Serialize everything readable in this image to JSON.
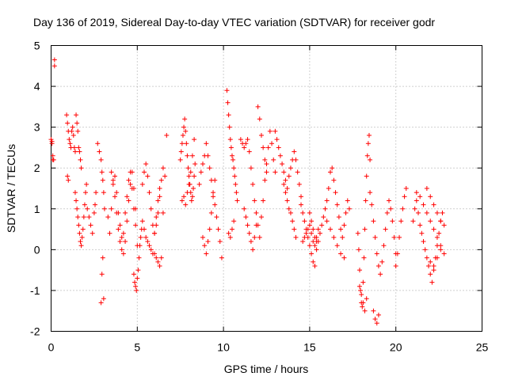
{
  "chart_data": {
    "type": "scatter",
    "title": "Day 136 of 2019, Sidereal Day-to-day VTEC variation (SDTVAR) for receiver godr",
    "xlabel": "GPS time / hours",
    "ylabel": "SDTVAR / TECUs",
    "xlim": [
      0,
      25
    ],
    "ylim": [
      -2,
      5
    ],
    "xticks": [
      0,
      5,
      10,
      15,
      20,
      25
    ],
    "yticks": [
      -2,
      -1,
      0,
      1,
      2,
      3,
      4,
      5
    ],
    "grid": true,
    "marker": "+",
    "series_color": "#ff0000",
    "series": [
      {
        "name": "SDTVAR",
        "x": [
          0.0,
          0.05,
          0.1,
          0.15,
          0.2,
          0.2,
          0.05,
          0.1,
          0.9,
          0.95,
          1.0,
          1.05,
          1.1,
          1.15,
          1.2,
          1.25,
          1.3,
          1.35,
          1.4,
          1.45,
          1.5,
          1.55,
          1.6,
          1.65,
          1.7,
          1.75,
          0.95,
          1.0,
          1.4,
          1.45,
          1.5,
          1.55,
          1.6,
          1.65,
          1.7,
          1.75,
          1.8,
          1.85,
          1.9,
          1.95,
          2.0,
          2.05,
          2.1,
          2.2,
          2.3,
          2.4,
          2.5,
          2.55,
          2.6,
          2.7,
          2.8,
          2.9,
          2.95,
          3.0,
          3.05,
          3.1,
          3.0,
          2.95,
          2.9,
          3.05,
          3.3,
          3.4,
          3.5,
          3.6,
          3.7,
          3.8,
          3.9,
          4.0,
          4.1,
          4.2,
          4.3,
          4.4,
          4.5,
          4.6,
          4.7,
          4.8,
          4.9,
          3.5,
          3.6,
          3.7,
          3.8,
          3.9,
          4.0,
          4.1,
          4.2,
          4.3,
          4.4,
          4.5,
          4.6,
          4.7,
          4.8,
          4.9,
          5.0,
          4.8,
          4.85,
          4.9,
          4.95,
          5.0,
          5.05,
          5.1,
          5.15,
          5.2,
          5.25,
          5.3,
          5.3,
          5.4,
          5.5,
          5.6,
          5.7,
          5.8,
          5.9,
          6.0,
          6.1,
          6.2,
          6.3,
          6.4,
          6.5,
          5.4,
          5.5,
          5.6,
          5.7,
          5.8,
          5.9,
          6.0,
          6.1,
          6.2,
          6.3,
          6.0,
          6.1,
          6.2,
          6.3,
          6.4,
          6.5,
          6.6,
          6.7,
          7.5,
          7.55,
          7.6,
          7.65,
          7.7,
          7.75,
          7.8,
          7.85,
          7.9,
          7.95,
          8.0,
          8.05,
          8.1,
          8.15,
          8.2,
          8.25,
          8.3,
          8.35,
          7.6,
          7.7,
          7.8,
          7.9,
          8.0,
          8.1,
          8.2,
          8.3,
          8.6,
          8.7,
          8.8,
          8.9,
          9.0,
          9.1,
          9.2,
          9.3,
          9.4,
          9.5,
          9.6,
          9.7,
          9.8,
          9.9,
          8.8,
          8.9,
          9.0,
          9.1,
          9.2,
          9.3,
          9.4,
          9.5,
          10.2,
          10.25,
          10.3,
          10.35,
          10.4,
          10.45,
          10.5,
          10.55,
          10.6,
          10.65,
          10.7,
          10.75,
          10.8,
          10.3,
          10.4,
          10.5,
          10.6,
          11.0,
          11.1,
          11.2,
          11.3,
          11.4,
          11.5,
          11.6,
          11.7,
          11.8,
          11.9,
          12.0,
          12.1,
          12.2,
          12.3,
          12.4,
          12.5,
          12.6,
          12.7,
          12.8,
          12.9,
          13.0,
          11.2,
          11.3,
          11.4,
          11.5,
          11.6,
          11.7,
          11.8,
          11.9,
          12.0,
          12.1,
          12.2,
          12.3,
          12.4,
          12.5,
          13.0,
          13.1,
          13.2,
          13.3,
          13.4,
          13.5,
          13.6,
          13.7,
          13.8,
          13.9,
          14.0,
          14.1,
          14.2,
          14.3,
          14.4,
          14.5,
          13.5,
          13.6,
          13.7,
          13.8,
          13.9,
          14.0,
          14.1,
          14.2,
          14.5,
          14.6,
          14.7,
          14.8,
          14.9,
          15.0,
          15.1,
          15.2,
          15.3,
          15.4,
          15.5,
          15.6,
          15.7,
          15.8,
          15.9,
          16.0,
          14.6,
          14.7,
          14.8,
          14.9,
          15.0,
          15.1,
          15.2,
          15.3,
          15.4,
          15.5,
          15.0,
          15.1,
          15.2,
          15.3,
          15.4,
          16.0,
          16.1,
          16.2,
          16.3,
          16.4,
          16.5,
          16.6,
          16.7,
          16.8,
          16.9,
          17.0,
          17.1,
          17.2,
          17.3,
          16.2,
          16.4,
          16.6,
          16.8,
          17.0,
          17.8,
          17.85,
          17.9,
          17.95,
          18.0,
          18.05,
          18.1,
          18.15,
          18.2,
          18.25,
          18.3,
          18.35,
          18.4,
          18.45,
          18.5,
          17.9,
          18.0,
          18.1,
          18.2,
          18.3,
          18.5,
          18.6,
          18.7,
          18.8,
          18.9,
          19.0,
          19.1,
          19.2,
          19.3,
          19.4,
          19.5,
          19.6,
          19.7,
          19.8,
          19.9,
          20.0,
          18.7,
          18.8,
          18.9,
          19.0,
          20.0,
          20.1,
          20.2,
          20.3,
          20.4,
          20.5,
          20.6,
          21.0,
          21.1,
          21.2,
          21.3,
          21.4,
          21.5,
          21.6,
          21.7,
          21.8,
          21.9,
          22.0,
          22.1,
          22.2,
          22.3,
          22.4,
          22.5,
          22.6,
          22.7,
          22.8,
          21.2,
          21.4,
          21.6,
          21.8,
          22.0,
          22.2,
          22.4,
          22.6,
          22.0,
          22.2,
          22.4,
          22.6,
          22.8,
          21.8,
          22.0,
          22.2,
          22.4,
          22.6
        ],
        "y": [
          2.7,
          2.65,
          2.3,
          2.2,
          4.5,
          4.65,
          2.6,
          2.2,
          3.3,
          3.1,
          2.9,
          2.7,
          2.6,
          2.5,
          2.9,
          3.0,
          2.8,
          2.5,
          2.4,
          3.3,
          3.1,
          2.9,
          2.5,
          2.4,
          2.2,
          2.0,
          1.8,
          1.7,
          1.4,
          1.2,
          1.0,
          0.8,
          0.6,
          0.4,
          0.2,
          0.1,
          0.3,
          0.5,
          0.8,
          1.1,
          1.4,
          1.6,
          1.0,
          0.8,
          0.6,
          0.4,
          0.9,
          1.1,
          1.4,
          2.6,
          2.4,
          2.2,
          1.9,
          1.7,
          1.4,
          1.0,
          -0.2,
          -0.6,
          -1.3,
          -1.2,
          0.8,
          0.4,
          1.0,
          1.6,
          1.8,
          1.4,
          0.9,
          0.6,
          0.3,
          -0.1,
          0.2,
          0.7,
          1.2,
          1.6,
          1.9,
          1.5,
          1.0,
          1.9,
          1.7,
          1.3,
          0.9,
          0.5,
          0.2,
          0.0,
          0.4,
          0.9,
          1.3,
          1.7,
          1.9,
          1.5,
          1.0,
          0.6,
          0.1,
          -0.6,
          -0.8,
          -0.9,
          -1.0,
          -0.7,
          -0.5,
          -0.2,
          0.1,
          0.3,
          0.5,
          0.7,
          1.6,
          1.9,
          2.1,
          1.8,
          1.4,
          1.0,
          0.6,
          0.4,
          0.6,
          0.9,
          1.3,
          1.7,
          2.0,
          0.5,
          0.3,
          0.2,
          0.1,
          0.0,
          -0.1,
          0.4,
          0.8,
          1.2,
          1.5,
          -0.1,
          -0.2,
          -0.3,
          -0.4,
          -0.2,
          0.9,
          1.8,
          2.8,
          2.2,
          2.4,
          2.6,
          2.8,
          3.0,
          3.2,
          2.9,
          2.6,
          2.3,
          2.0,
          1.8,
          1.6,
          1.4,
          1.2,
          1.3,
          1.5,
          1.8,
          2.1,
          1.2,
          1.3,
          1.1,
          1.4,
          1.6,
          1.9,
          2.3,
          2.7,
          1.6,
          1.9,
          2.1,
          2.3,
          2.6,
          2.3,
          2.0,
          1.7,
          1.4,
          1.1,
          0.8,
          0.5,
          0.2,
          -0.2,
          0.3,
          0.1,
          -0.1,
          0.2,
          0.5,
          0.9,
          1.3,
          1.7,
          3.9,
          3.6,
          3.3,
          3.0,
          2.7,
          2.5,
          2.3,
          2.2,
          2.0,
          1.8,
          1.6,
          1.4,
          1.2,
          0.4,
          0.3,
          0.5,
          0.7,
          2.7,
          2.6,
          2.5,
          2.6,
          2.7,
          2.4,
          2.0,
          1.6,
          1.2,
          0.9,
          0.6,
          0.3,
          0.8,
          1.2,
          1.7,
          2.1,
          2.5,
          2.9,
          2.6,
          2.2,
          1.9,
          1.0,
          0.8,
          0.6,
          0.4,
          0.2,
          0.0,
          0.3,
          0.6,
          3.5,
          3.2,
          2.8,
          2.5,
          2.2,
          1.9,
          2.9,
          2.7,
          2.5,
          2.3,
          2.1,
          1.9,
          1.7,
          1.5,
          1.8,
          2.0,
          2.2,
          2.4,
          2.2,
          1.9,
          1.6,
          1.3,
          1.6,
          1.4,
          1.2,
          1.0,
          0.9,
          0.7,
          0.5,
          0.3,
          1.1,
          0.9,
          0.7,
          0.5,
          0.3,
          0.1,
          -0.1,
          -0.3,
          -0.4,
          0.0,
          0.2,
          0.4,
          0.6,
          0.8,
          1.0,
          0.7,
          0.2,
          0.3,
          0.4,
          0.5,
          0.6,
          0.4,
          0.2,
          0.1,
          0.3,
          0.5,
          0.9,
          0.7,
          0.5,
          0.3,
          0.2,
          1.2,
          1.5,
          1.9,
          2.0,
          1.7,
          1.4,
          1.1,
          0.8,
          0.5,
          0.3,
          0.6,
          0.9,
          1.2,
          1.0,
          0.5,
          0.3,
          0.1,
          -0.1,
          -0.2,
          0.4,
          0.0,
          -0.5,
          -1.0,
          -1.3,
          -1.4,
          -0.8,
          -0.2,
          0.5,
          1.2,
          1.8,
          2.3,
          2.6,
          2.8,
          2.2,
          -0.9,
          -1.1,
          -1.3,
          -1.5,
          -1.2,
          1.4,
          1.1,
          0.7,
          0.3,
          -0.1,
          -0.4,
          -0.6,
          -0.3,
          0.1,
          0.5,
          0.9,
          1.2,
          1.0,
          0.7,
          0.3,
          -0.1,
          -1.5,
          -1.7,
          -1.8,
          -1.6,
          -0.4,
          -0.1,
          0.3,
          0.7,
          1.0,
          1.3,
          1.5,
          0.7,
          1.0,
          1.2,
          0.9,
          0.6,
          0.4,
          0.2,
          0.0,
          -0.2,
          -0.4,
          -0.6,
          -0.8,
          -0.5,
          -0.2,
          0.1,
          0.4,
          0.7,
          0.9,
          0.6,
          1.4,
          1.3,
          1.1,
          0.9,
          0.7,
          0.5,
          0.3,
          0.1,
          -0.3,
          -0.4,
          -0.2,
          0.0,
          -0.1,
          1.5,
          1.3,
          1.1,
          0.9,
          0.7
        ]
      }
    ]
  }
}
